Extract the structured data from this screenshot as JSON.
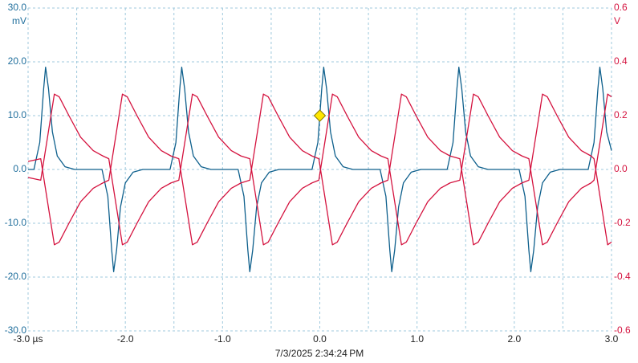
{
  "chart_data": {
    "type": "line",
    "ylabel": "mV",
    "y2label": "V",
    "timestamp": "7/3/2025 2:34:24 PM",
    "xlim": [
      -3,
      3
    ],
    "xticks": [
      {
        "value": -3,
        "label": "-3.0 µs"
      },
      {
        "value": -2,
        "label": "-2.0"
      },
      {
        "value": -1,
        "label": "-1.0"
      },
      {
        "value": 0,
        "label": "0.0"
      },
      {
        "value": 1,
        "label": "1.0"
      },
      {
        "value": 2,
        "label": "2.0"
      },
      {
        "value": 3,
        "label": "3.0"
      }
    ],
    "xminor": [
      -2.5,
      -1.5,
      -0.5,
      0.5,
      1.5,
      2.5
    ],
    "ylim": [
      -30,
      30
    ],
    "yticks": [
      {
        "value": 30,
        "label": "30.0"
      },
      {
        "value": 20,
        "label": "20.0"
      },
      {
        "value": 10,
        "label": "10.0"
      },
      {
        "value": 0,
        "label": "0.0"
      },
      {
        "value": -10,
        "label": "-10.0"
      },
      {
        "value": -20,
        "label": "-20.0"
      },
      {
        "value": -30,
        "label": "-30.0"
      }
    ],
    "y2lim": [
      -0.6,
      0.6
    ],
    "y2ticks": [
      0.6,
      0.4,
      0.2,
      {
        "value": 0,
        "label": "0.0"
      },
      -0.2,
      -0.4,
      -0.6
    ],
    "grid": true,
    "trigger": {
      "x": 0,
      "y": 10,
      "color": "#ffe600"
    },
    "series": [
      {
        "color": "#0d5f8c",
        "axis": "y",
        "x": [
          -3.0,
          -2.94,
          -2.88,
          -2.84,
          -2.82,
          -2.79,
          -2.75,
          -2.7,
          -2.62,
          -2.52,
          -2.24,
          -2.18,
          -2.14,
          -2.12,
          -2.09,
          -2.05,
          -2.0,
          -1.92,
          -1.82,
          -1.54,
          -1.48,
          -1.44,
          -1.42,
          -1.39,
          -1.35,
          -1.3,
          -1.22,
          -1.12,
          -0.84,
          -0.78,
          -0.74,
          -0.72,
          -0.69,
          -0.65,
          -0.6,
          -0.52,
          -0.42,
          -0.08,
          -0.02,
          0.02,
          0.04,
          0.07,
          0.11,
          0.16,
          0.24,
          0.34,
          0.62,
          0.68,
          0.72,
          0.74,
          0.77,
          0.81,
          0.86,
          0.94,
          1.04,
          1.31,
          1.37,
          1.41,
          1.43,
          1.46,
          1.5,
          1.55,
          1.63,
          1.73,
          2.05,
          2.11,
          2.15,
          2.17,
          2.2,
          2.24,
          2.29,
          2.37,
          2.47,
          2.76,
          2.82,
          2.86,
          2.88,
          2.91,
          2.95,
          3.0
        ],
        "values": [
          0,
          0,
          5,
          15,
          19,
          15,
          7,
          2.5,
          0.5,
          0,
          0,
          -5,
          -15,
          -19,
          -15,
          -7,
          -2.5,
          -0.5,
          0,
          0,
          5,
          15,
          19,
          15,
          7,
          2.5,
          0.5,
          0,
          0,
          -5,
          -15,
          -19,
          -15,
          -7,
          -2.5,
          -0.5,
          0,
          0,
          5,
          15,
          19,
          15,
          7,
          2.5,
          0.5,
          0,
          0,
          -5,
          -15,
          -19,
          -15,
          -7,
          -2.5,
          -0.5,
          0,
          0,
          5,
          15,
          19,
          15,
          7,
          2.5,
          0.5,
          0,
          0,
          -5,
          -15,
          -19,
          -15,
          -7,
          -2.5,
          -0.5,
          0,
          0,
          5,
          15,
          19,
          15,
          7,
          3.5
        ]
      },
      {
        "color": "#d4123e",
        "axis": "y2",
        "x": [
          -3.0,
          -2.87,
          -2.8,
          -2.73,
          -2.68,
          -2.58,
          -2.46,
          -2.33,
          -2.23,
          -2.17,
          -2.1,
          -2.03,
          -1.98,
          -1.88,
          -1.76,
          -1.63,
          -1.53,
          -1.45,
          -1.38,
          -1.31,
          -1.26,
          -1.16,
          -1.04,
          -0.91,
          -0.81,
          -0.72,
          -0.65,
          -0.58,
          -0.53,
          -0.43,
          -0.31,
          -0.18,
          -0.08,
          -0.01,
          0.06,
          0.13,
          0.18,
          0.28,
          0.4,
          0.53,
          0.63,
          0.7,
          0.77,
          0.84,
          0.89,
          0.99,
          1.11,
          1.24,
          1.34,
          1.44,
          1.51,
          1.58,
          1.63,
          1.73,
          1.85,
          1.98,
          2.08,
          2.15,
          2.22,
          2.29,
          2.34,
          2.44,
          2.56,
          2.69,
          2.79,
          2.82,
          2.89,
          2.96,
          3.0
        ],
        "values": [
          -0.03,
          -0.04,
          0.12,
          0.28,
          0.27,
          0.2,
          0.12,
          0.07,
          0.05,
          0.04,
          -0.12,
          -0.28,
          -0.27,
          -0.2,
          -0.12,
          -0.07,
          -0.05,
          -0.04,
          0.12,
          0.28,
          0.27,
          0.2,
          0.12,
          0.07,
          0.05,
          0.04,
          -0.12,
          -0.28,
          -0.27,
          -0.2,
          -0.12,
          -0.07,
          -0.05,
          -0.04,
          0.12,
          0.28,
          0.27,
          0.2,
          0.12,
          0.07,
          0.05,
          0.04,
          -0.12,
          -0.28,
          -0.27,
          -0.2,
          -0.12,
          -0.07,
          -0.05,
          -0.04,
          0.12,
          0.28,
          0.27,
          0.2,
          0.12,
          0.07,
          0.05,
          0.04,
          -0.12,
          -0.28,
          -0.27,
          -0.2,
          -0.12,
          -0.07,
          -0.05,
          -0.04,
          0.12,
          0.28,
          0.27
        ]
      },
      {
        "color": "#d4123e",
        "axis": "y2",
        "x": [
          -3.0,
          -2.87,
          -2.8,
          -2.73,
          -2.68,
          -2.58,
          -2.46,
          -2.33,
          -2.23,
          -2.17,
          -2.1,
          -2.03,
          -1.98,
          -1.88,
          -1.76,
          -1.63,
          -1.53,
          -1.45,
          -1.38,
          -1.31,
          -1.26,
          -1.16,
          -1.04,
          -0.91,
          -0.81,
          -0.72,
          -0.65,
          -0.58,
          -0.53,
          -0.43,
          -0.31,
          -0.18,
          -0.08,
          -0.01,
          0.06,
          0.13,
          0.18,
          0.28,
          0.4,
          0.53,
          0.63,
          0.7,
          0.77,
          0.84,
          0.89,
          0.99,
          1.11,
          1.24,
          1.34,
          1.44,
          1.51,
          1.58,
          1.63,
          1.73,
          1.85,
          1.98,
          2.08,
          2.15,
          2.22,
          2.29,
          2.34,
          2.44,
          2.56,
          2.69,
          2.79,
          2.82,
          2.89,
          2.96,
          3.0
        ],
        "values": [
          0.03,
          0.04,
          -0.12,
          -0.28,
          -0.27,
          -0.2,
          -0.12,
          -0.07,
          -0.05,
          -0.04,
          0.12,
          0.28,
          0.27,
          0.2,
          0.12,
          0.07,
          0.05,
          0.04,
          -0.12,
          -0.28,
          -0.27,
          -0.2,
          -0.12,
          -0.07,
          -0.05,
          -0.04,
          0.12,
          0.28,
          0.27,
          0.2,
          0.12,
          0.07,
          0.05,
          0.04,
          -0.12,
          -0.28,
          -0.27,
          -0.2,
          -0.12,
          -0.07,
          -0.05,
          -0.04,
          0.12,
          0.28,
          0.27,
          0.2,
          0.12,
          0.07,
          0.05,
          0.04,
          -0.12,
          -0.28,
          -0.27,
          -0.2,
          -0.12,
          -0.07,
          -0.05,
          -0.04,
          0.12,
          0.28,
          0.27,
          0.2,
          0.12,
          0.07,
          0.05,
          0.04,
          -0.12,
          -0.28,
          -0.27
        ]
      }
    ]
  }
}
